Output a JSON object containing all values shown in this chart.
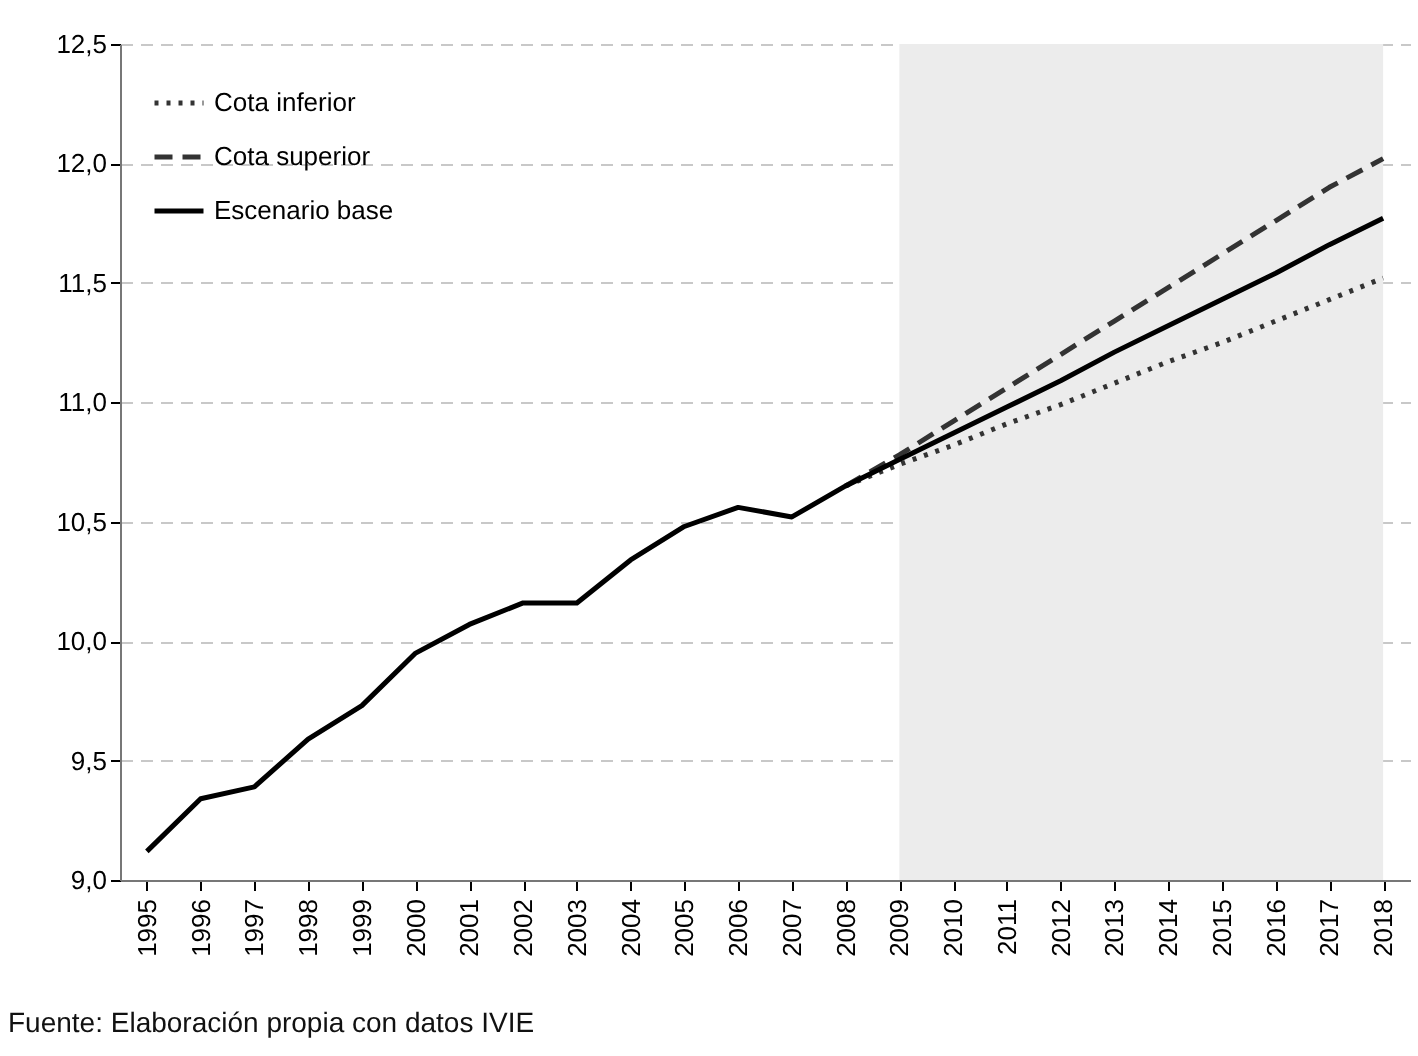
{
  "chart_data": {
    "type": "line",
    "categories": [
      "1995",
      "1996",
      "1997",
      "1998",
      "1999",
      "2000",
      "2001",
      "2002",
      "2003",
      "2004",
      "2005",
      "2006",
      "2007",
      "2008",
      "2009",
      "2010",
      "2011",
      "2012",
      "2013",
      "2014",
      "2015",
      "2016",
      "2017",
      "2018"
    ],
    "series": [
      {
        "name": "Cota inferior",
        "color": "#333333",
        "line_style": "dotted",
        "values": [
          null,
          null,
          null,
          null,
          null,
          null,
          null,
          null,
          null,
          null,
          null,
          null,
          null,
          10.65,
          10.74,
          10.82,
          10.91,
          10.99,
          11.08,
          11.17,
          11.25,
          11.34,
          11.43,
          11.52
        ]
      },
      {
        "name": "Cota superior",
        "color": "#333333",
        "line_style": "dashed",
        "values": [
          null,
          null,
          null,
          null,
          null,
          null,
          null,
          null,
          null,
          null,
          null,
          null,
          null,
          10.65,
          10.78,
          10.92,
          11.06,
          11.2,
          11.34,
          11.48,
          11.62,
          11.76,
          11.9,
          12.02
        ]
      },
      {
        "name": "Escenario base",
        "color": "#000000",
        "line_style": "solid",
        "values": [
          9.12,
          9.34,
          9.39,
          9.59,
          9.73,
          9.95,
          10.07,
          10.16,
          10.16,
          10.34,
          10.48,
          10.56,
          10.52,
          10.65,
          10.76,
          10.87,
          10.98,
          11.09,
          11.21,
          11.32,
          11.43,
          11.54,
          11.66,
          11.77
        ]
      }
    ],
    "ylim": [
      9,
      12.5
    ],
    "yticks": [
      {
        "value": 9,
        "label": "9,0"
      },
      {
        "value": 9.5,
        "label": "9,5"
      },
      {
        "value": 10,
        "label": "10,0"
      },
      {
        "value": 10.5,
        "label": "10,5"
      },
      {
        "value": 11,
        "label": "11,0"
      },
      {
        "value": 11.5,
        "label": "11,5"
      },
      {
        "value": 12,
        "label": "12,0"
      },
      {
        "value": 12.5,
        "label": "12,5"
      }
    ],
    "grid": "y",
    "legend": "top left",
    "marker": "none",
    "bands": [
      {
        "axis": "x",
        "from": "2009",
        "to": "2018",
        "color": "#ececec"
      }
    ],
    "annotations": [
      "Fuente: Elaboración propia con datos IVIE"
    ]
  }
}
